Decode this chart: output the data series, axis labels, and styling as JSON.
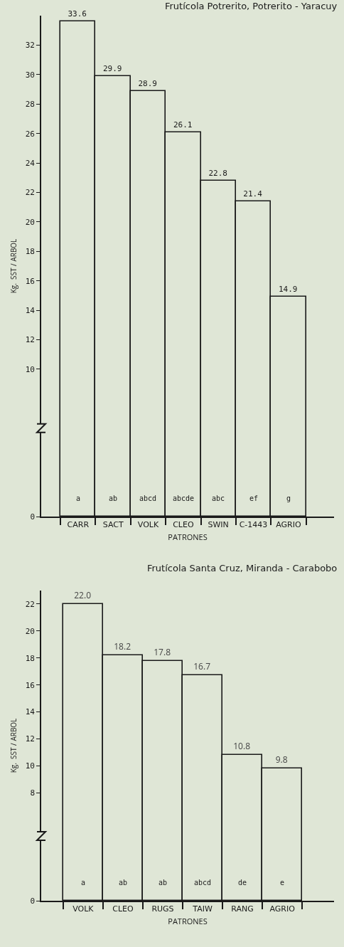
{
  "chart_data": [
    {
      "type": "bar",
      "title": "Frutícola Potrerito, Potrerito - Yaracuy",
      "xlabel": "PATRONES",
      "ylabel": "Kg.  SST / ARBOL",
      "categories": [
        "CARR",
        "SACT",
        "VOLK",
        "CLEO",
        "SWIN",
        "C-1443",
        "AGRIO"
      ],
      "values": [
        33.6,
        29.9,
        28.9,
        26.1,
        22.8,
        21.4,
        14.9
      ],
      "color": "#dfe6d6",
      "data_labels": true,
      "ylim": [
        0,
        34
      ],
      "yticks": [
        0,
        10,
        12,
        14,
        16,
        18,
        20,
        22,
        24,
        26,
        28,
        30,
        32
      ],
      "grid": false,
      "annotations": [
        "a",
        "ab",
        "abcd",
        "abcde",
        "abc",
        "ef",
        "g"
      ]
    },
    {
      "type": "bar",
      "title": "Frutícola Santa Cruz, Miranda - Carabobo",
      "xlabel": "PATRONES",
      "ylabel": "Kg.  SST / ARBOL",
      "categories": [
        "VOLK",
        "CLEO",
        "RUGS",
        "TAIW",
        "RANG",
        "AGRIO"
      ],
      "values": [
        22.0,
        18.2,
        17.8,
        16.7,
        10.8,
        9.8
      ],
      "value_labels": [
        "22.0",
        "18.2",
        "17.8",
        "16.7",
        "10.8",
        "9.8"
      ],
      "color": "#dfe6d6",
      "ylim": [
        0,
        23
      ],
      "yticks": [
        0,
        8,
        10,
        12,
        14,
        16,
        18,
        20,
        22
      ],
      "grid": false,
      "annotations": [
        "a",
        "ab",
        "ab",
        "abcd",
        "de",
        "e"
      ]
    }
  ]
}
